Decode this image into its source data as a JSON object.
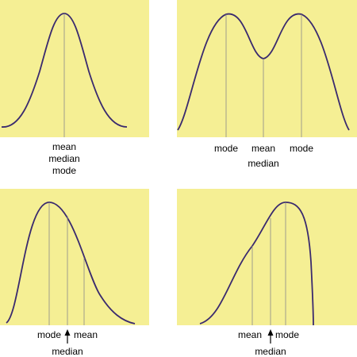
{
  "panels": [
    {
      "id": "symmetric",
      "labels": [
        "mean",
        "median",
        "mode"
      ]
    },
    {
      "id": "bimodal",
      "labels": [
        "mode",
        "mean",
        "mode",
        "median"
      ]
    },
    {
      "id": "right-skewed",
      "labels": [
        "mode",
        "mean",
        "median"
      ]
    },
    {
      "id": "left-skewed",
      "labels": [
        "mean",
        "mode",
        "median"
      ]
    }
  ],
  "colors": {
    "panel_background": "#f5ef94",
    "curve": "#3a2a6e",
    "marker_line": "#8a8a8a"
  }
}
